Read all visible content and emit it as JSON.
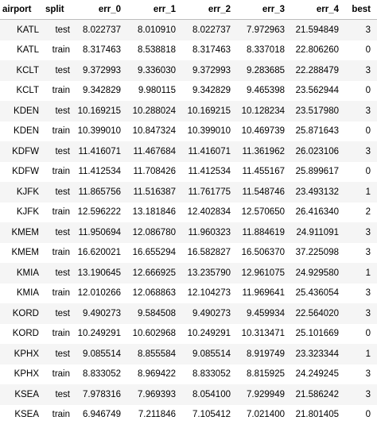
{
  "table": {
    "columns": [
      "airport",
      "split",
      "err_0",
      "err_1",
      "err_2",
      "err_3",
      "err_4",
      "best"
    ],
    "rows": [
      [
        "KATL",
        "test",
        "8.022737",
        "8.010910",
        "8.022737",
        "7.972963",
        "21.594849",
        "3"
      ],
      [
        "KATL",
        "train",
        "8.317463",
        "8.538818",
        "8.317463",
        "8.337018",
        "22.806260",
        "0"
      ],
      [
        "KCLT",
        "test",
        "9.372993",
        "9.336030",
        "9.372993",
        "9.283685",
        "22.288479",
        "3"
      ],
      [
        "KCLT",
        "train",
        "9.342829",
        "9.980115",
        "9.342829",
        "9.465398",
        "23.562944",
        "0"
      ],
      [
        "KDEN",
        "test",
        "10.169215",
        "10.288024",
        "10.169215",
        "10.128234",
        "23.517980",
        "3"
      ],
      [
        "KDEN",
        "train",
        "10.399010",
        "10.847324",
        "10.399010",
        "10.469739",
        "25.871643",
        "0"
      ],
      [
        "KDFW",
        "test",
        "11.416071",
        "11.467684",
        "11.416071",
        "11.361962",
        "26.023106",
        "3"
      ],
      [
        "KDFW",
        "train",
        "11.412534",
        "11.708426",
        "11.412534",
        "11.455167",
        "25.899617",
        "0"
      ],
      [
        "KJFK",
        "test",
        "11.865756",
        "11.516387",
        "11.761775",
        "11.548746",
        "23.493132",
        "1"
      ],
      [
        "KJFK",
        "train",
        "12.596222",
        "13.181846",
        "12.402834",
        "12.570650",
        "26.416340",
        "2"
      ],
      [
        "KMEM",
        "test",
        "11.950694",
        "12.086780",
        "11.960323",
        "11.884619",
        "24.911091",
        "3"
      ],
      [
        "KMEM",
        "train",
        "16.620021",
        "16.655294",
        "16.582827",
        "16.506370",
        "37.225098",
        "3"
      ],
      [
        "KMIA",
        "test",
        "13.190645",
        "12.666925",
        "13.235790",
        "12.961075",
        "24.929580",
        "1"
      ],
      [
        "KMIA",
        "train",
        "12.010266",
        "12.068863",
        "12.104273",
        "11.969641",
        "25.436054",
        "3"
      ],
      [
        "KORD",
        "test",
        "9.490273",
        "9.584508",
        "9.490273",
        "9.459934",
        "22.564020",
        "3"
      ],
      [
        "KORD",
        "train",
        "10.249291",
        "10.602968",
        "10.249291",
        "10.313471",
        "25.101669",
        "0"
      ],
      [
        "KPHX",
        "test",
        "9.085514",
        "8.855584",
        "9.085514",
        "8.919749",
        "23.323344",
        "1"
      ],
      [
        "KPHX",
        "train",
        "8.833052",
        "8.969422",
        "8.833052",
        "8.815925",
        "24.249245",
        "3"
      ],
      [
        "KSEA",
        "test",
        "7.978316",
        "7.969393",
        "8.054100",
        "7.929949",
        "21.586242",
        "3"
      ],
      [
        "KSEA",
        "train",
        "6.946749",
        "7.211846",
        "7.105412",
        "7.021400",
        "21.801405",
        "0"
      ]
    ]
  }
}
